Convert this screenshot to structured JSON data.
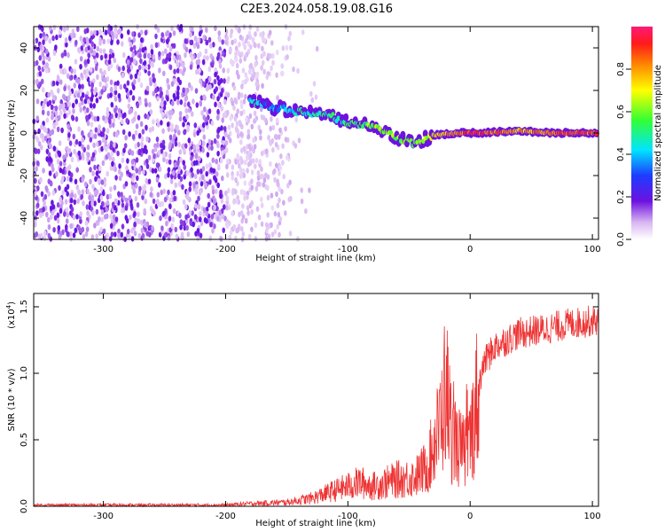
{
  "title": "C2E3.2024.058.19.08.G16",
  "chart_data": [
    {
      "type": "heatmap",
      "xlabel": "Height of straight line (km)",
      "ylabel": "Frequency (Hz)",
      "xlim": [
        -357,
        105
      ],
      "ylim": [
        -50,
        50
      ],
      "xticks": [
        -300,
        -200,
        -100,
        0,
        100
      ],
      "yticks": [
        -40,
        -20,
        0,
        20,
        40
      ],
      "colorbar": {
        "label": "Normalized spectral amplitude",
        "range": [
          0,
          1
        ],
        "ticks": [
          "0.0",
          "0.2",
          "0.4",
          "0.6",
          "0.8"
        ]
      },
      "noise_region": {
        "x": [
          -357,
          -150
        ],
        "freq": [
          -50,
          50
        ]
      },
      "signal_trace": [
        {
          "x": -180,
          "freq": 15,
          "amp": 0.45
        },
        {
          "x": -160,
          "freq": 12,
          "amp": 0.35
        },
        {
          "x": -140,
          "freq": 10,
          "amp": 0.45
        },
        {
          "x": -120,
          "freq": 9,
          "amp": 0.5
        },
        {
          "x": -100,
          "freq": 5,
          "amp": 0.5
        },
        {
          "x": -80,
          "freq": 3,
          "amp": 0.6
        },
        {
          "x": -60,
          "freq": -2,
          "amp": 0.6
        },
        {
          "x": -45,
          "freq": -5,
          "amp": 0.55
        },
        {
          "x": -30,
          "freq": -1,
          "amp": 0.7
        },
        {
          "x": -10,
          "freq": 0,
          "amp": 0.85
        },
        {
          "x": 10,
          "freq": 0,
          "amp": 0.9
        },
        {
          "x": 40,
          "freq": 1,
          "amp": 0.75
        },
        {
          "x": 70,
          "freq": 0,
          "amp": 0.85
        },
        {
          "x": 105,
          "freq": 0,
          "amp": 0.85
        }
      ]
    },
    {
      "type": "line",
      "xlabel": "Height of straight line (km)",
      "ylabel": "SNR (10 * v/v)",
      "yscale_label": "(x10",
      "yscale_exp": "4",
      "yscale_close": ")",
      "xlim": [
        -357,
        105
      ],
      "ylim": [
        0,
        1.6
      ],
      "xticks": [
        -300,
        -200,
        -100,
        0,
        100
      ],
      "yticks": [
        "0.0",
        "0.5",
        "1.0",
        "1.5"
      ],
      "series": [
        {
          "color": "#ee3333",
          "x": [
            -357,
            -200,
            -180,
            -150,
            -130,
            -110,
            -90,
            -80,
            -60,
            -45,
            -35,
            -25,
            -20,
            -15,
            -10,
            -5,
            0,
            10,
            20,
            40,
            60,
            80,
            105
          ],
          "y": [
            0.01,
            0.01,
            0.02,
            0.03,
            0.06,
            0.12,
            0.18,
            0.15,
            0.2,
            0.22,
            0.3,
            0.6,
            0.9,
            0.55,
            0.45,
            0.4,
            0.5,
            1.05,
            1.2,
            1.3,
            1.33,
            1.37,
            1.4
          ]
        }
      ]
    }
  ]
}
